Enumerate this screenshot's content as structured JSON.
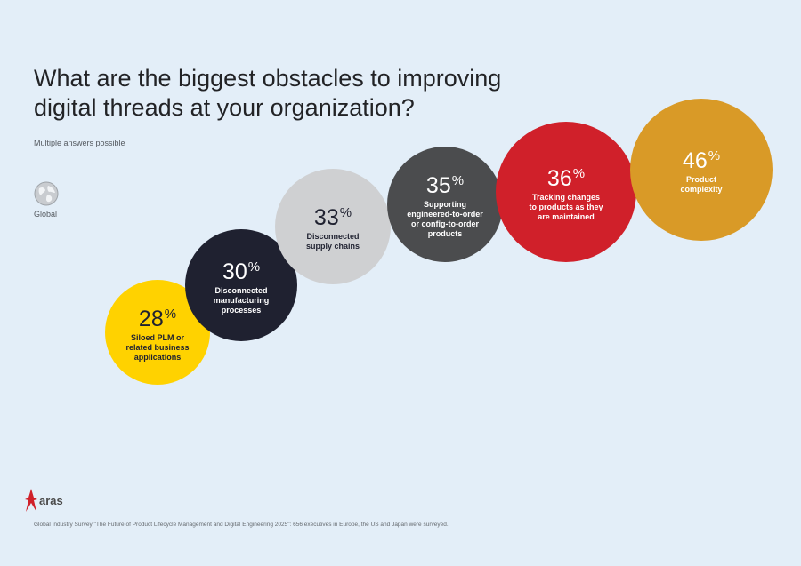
{
  "chart_data": {
    "type": "bubble",
    "title": "What are the biggest obstacles to improving digital threads at your organization?",
    "subtitle": "Multiple answers possible",
    "scope": "Global",
    "unit": "%",
    "categories": [
      "Siloed PLM or related business applications",
      "Disconnected manufacturing processes",
      "Disconnected supply chains",
      "Supporting engineered-to-order or config-to-order products",
      "Tracking changes to products as they are maintained",
      "Product complexity"
    ],
    "values": [
      28,
      30,
      33,
      35,
      36,
      46
    ],
    "colors": [
      "#ffd200",
      "#1f2130",
      "#cfd0d2",
      "#4b4c4e",
      "#d0202a",
      "#d99a27"
    ],
    "text_colors": [
      "#1f2130",
      "#ffffff",
      "#1f2130",
      "#ffffff",
      "#ffffff",
      "#ffffff"
    ]
  },
  "bubble_labels": [
    [
      "Siloed PLM or",
      "related  business",
      "applications"
    ],
    [
      "Disconnected",
      "manufacturing",
      "processes"
    ],
    [
      "Disconnected",
      "supply chains"
    ],
    [
      "Supporting",
      "engineered-to-order",
      "or config-to-order",
      "products"
    ],
    [
      "Tracking changes",
      "to products as they",
      "are maintained"
    ],
    [
      "Product",
      "complexity"
    ]
  ],
  "logo": "aras",
  "footer": "Global Industry Survey \"The Future of Product Lifecycle Management and Digital Engineering 2025\": 656 executives in Europe, the US and Japan were surveyed."
}
